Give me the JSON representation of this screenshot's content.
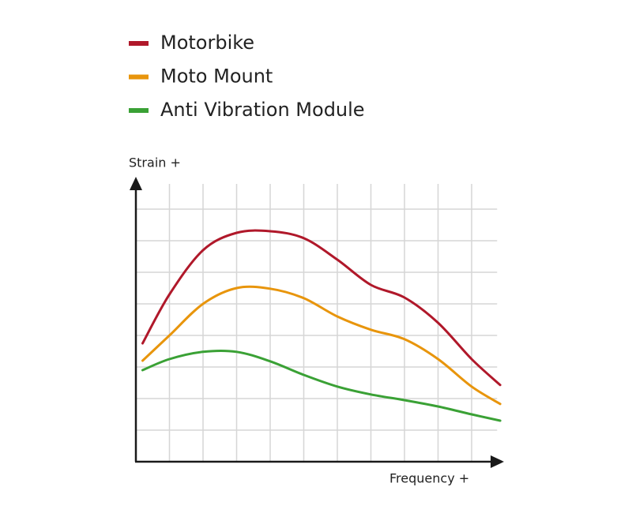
{
  "chart_data": {
    "type": "line",
    "xlabel": "Frequency +",
    "ylabel": "Strain +",
    "x": [
      0.2,
      1,
      2,
      3,
      4,
      5,
      6,
      7,
      8,
      9,
      10,
      10.85
    ],
    "series": [
      {
        "name": "Motorbike",
        "color": "#b0182a",
        "values": [
          3.75,
          5.3,
          6.7,
          7.25,
          7.3,
          7.08,
          6.4,
          5.6,
          5.2,
          4.4,
          3.25,
          2.43
        ]
      },
      {
        "name": "Moto Mount",
        "color": "#e8950c",
        "values": [
          3.2,
          4.0,
          5.0,
          5.5,
          5.48,
          5.18,
          4.6,
          4.18,
          3.88,
          3.25,
          2.38,
          1.83
        ]
      },
      {
        "name": "Anti Vibration Module",
        "color": "#3aa135",
        "values": [
          2.9,
          3.25,
          3.48,
          3.48,
          3.18,
          2.75,
          2.38,
          2.13,
          1.95,
          1.75,
          1.5,
          1.3
        ]
      }
    ],
    "xlim": [
      0,
      10.9
    ],
    "ylim": [
      0,
      8.9
    ],
    "xticks": [
      1,
      2,
      3,
      4,
      5,
      6,
      7,
      8,
      9,
      10
    ],
    "yticks": [
      1,
      2,
      3,
      4,
      5,
      6,
      7,
      8
    ],
    "grid": true
  }
}
